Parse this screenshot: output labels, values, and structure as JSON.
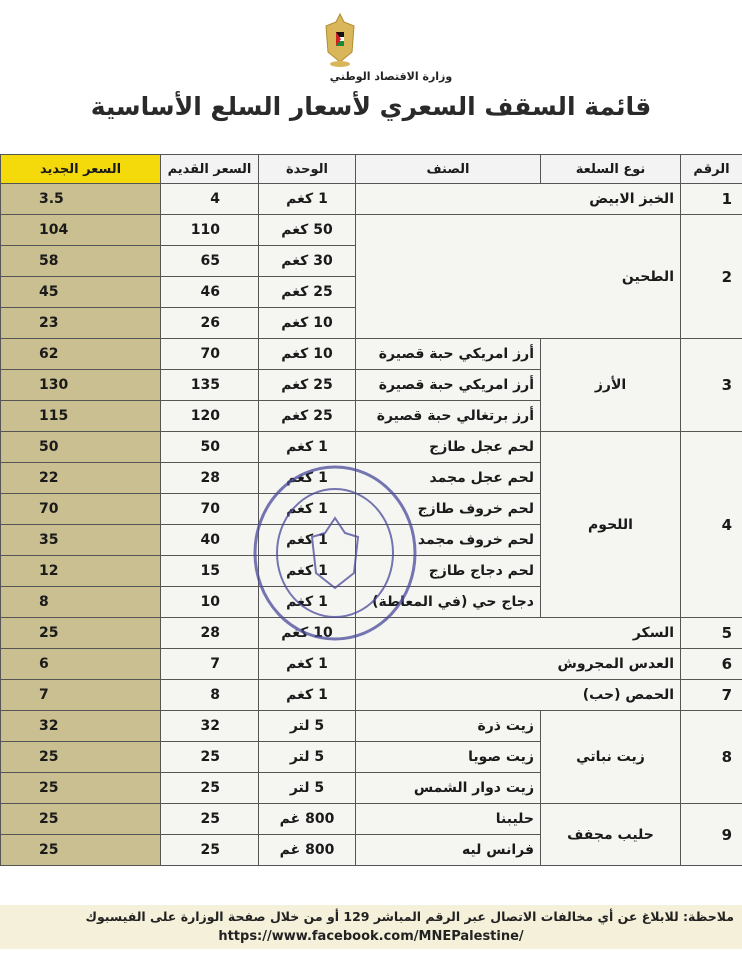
{
  "header": {
    "ministry_name": "وزارة الاقتصاد الوطني",
    "title": "قائمة السقف السعري لأسعار السلع الأساسية",
    "logo_icon": "palestine-eagle-emblem"
  },
  "colors": {
    "header_new_price": "#f4d90b",
    "new_price_column": "#c9bf90"
  },
  "table": {
    "columns": [
      "الرقم",
      "نوع السلعة",
      "الصنف",
      "الوحدة",
      "السعر القديم",
      "السعر الجديد"
    ],
    "groups": [
      {
        "number": "1",
        "type": "الخبز الابيض",
        "items": [
          {
            "category": "",
            "unit": "1 كغم",
            "old_price": "4",
            "new_price": "3.5"
          }
        ]
      },
      {
        "number": "2",
        "type": "الطحين",
        "items": [
          {
            "category": "",
            "unit": "50 كغم",
            "old_price": "110",
            "new_price": "104"
          },
          {
            "category": "",
            "unit": "30 كغم",
            "old_price": "65",
            "new_price": "58"
          },
          {
            "category": "",
            "unit": "25 كغم",
            "old_price": "46",
            "new_price": "45"
          },
          {
            "category": "",
            "unit": "10 كغم",
            "old_price": "26",
            "new_price": "23"
          }
        ]
      },
      {
        "number": "3",
        "type": "الأرز",
        "items": [
          {
            "category": "أرز امريكي حبة قصيرة",
            "unit": "10 كغم",
            "old_price": "70",
            "new_price": "62"
          },
          {
            "category": "أرز امريكي حبة قصيرة",
            "unit": "25 كغم",
            "old_price": "135",
            "new_price": "130"
          },
          {
            "category": "أرز برتغالي حبة قصيرة",
            "unit": "25 كغم",
            "old_price": "120",
            "new_price": "115"
          }
        ]
      },
      {
        "number": "4",
        "type": "اللحوم",
        "items": [
          {
            "category": "لحم عجل طازج",
            "unit": "1 كغم",
            "old_price": "50",
            "new_price": "50"
          },
          {
            "category": "لحم عجل مجمد",
            "unit": "1 كغم",
            "old_price": "28",
            "new_price": "22"
          },
          {
            "category": "لحم خروف طازج",
            "unit": "1 كغم",
            "old_price": "70",
            "new_price": "70"
          },
          {
            "category": "لحم خروف مجمد",
            "unit": "1 كغم",
            "old_price": "40",
            "new_price": "35"
          },
          {
            "category": "لحم دجاج طازج",
            "unit": "1 كغم",
            "old_price": "15",
            "new_price": "12"
          },
          {
            "category": "دجاج حي (في المعاطة)",
            "unit": "1 كغم",
            "old_price": "10",
            "new_price": "8"
          }
        ]
      },
      {
        "number": "5",
        "type": "السكر",
        "items": [
          {
            "category": "",
            "unit": "10 كغم",
            "old_price": "28",
            "new_price": "25"
          }
        ]
      },
      {
        "number": "6",
        "type": "العدس المجروش",
        "items": [
          {
            "category": "",
            "unit": "1 كغم",
            "old_price": "7",
            "new_price": "6"
          }
        ]
      },
      {
        "number": "7",
        "type": "الحمص (حب)",
        "items": [
          {
            "category": "",
            "unit": "1 كغم",
            "old_price": "8",
            "new_price": "7"
          }
        ]
      },
      {
        "number": "8",
        "type": "زيت نباتي",
        "items": [
          {
            "category": "زيت ذرة",
            "unit": "5 لتر",
            "old_price": "32",
            "new_price": "32"
          },
          {
            "category": "زيت صويا",
            "unit": "5 لتر",
            "old_price": "25",
            "new_price": "25"
          },
          {
            "category": "زيت دوار الشمس",
            "unit": "5 لتر",
            "old_price": "25",
            "new_price": "25"
          }
        ]
      },
      {
        "number": "9",
        "type": "حليب مجفف",
        "items": [
          {
            "category": "حليبنا",
            "unit": "800 غم",
            "old_price": "25",
            "new_price": "25"
          },
          {
            "category": "فرانس ليه",
            "unit": "800 غم",
            "old_price": "25",
            "new_price": "25"
          }
        ]
      }
    ]
  },
  "note": {
    "line1": "ملاحظة: للابلاغ عن أي مخالفات الاتصال عبر الرقم المباشر 129 أو من خلال صفحة الوزارة على الفيسبوك",
    "link": "https://www.facebook.com/MNEPalestine/"
  },
  "stamp": {
    "text_ar": "وزارة الاقتصاد الوطني - دولة فلسطين - مكتب",
    "text_en": "MINISTRY OF NATIONAL ECONOMY - STATE OF PALESTINE"
  }
}
